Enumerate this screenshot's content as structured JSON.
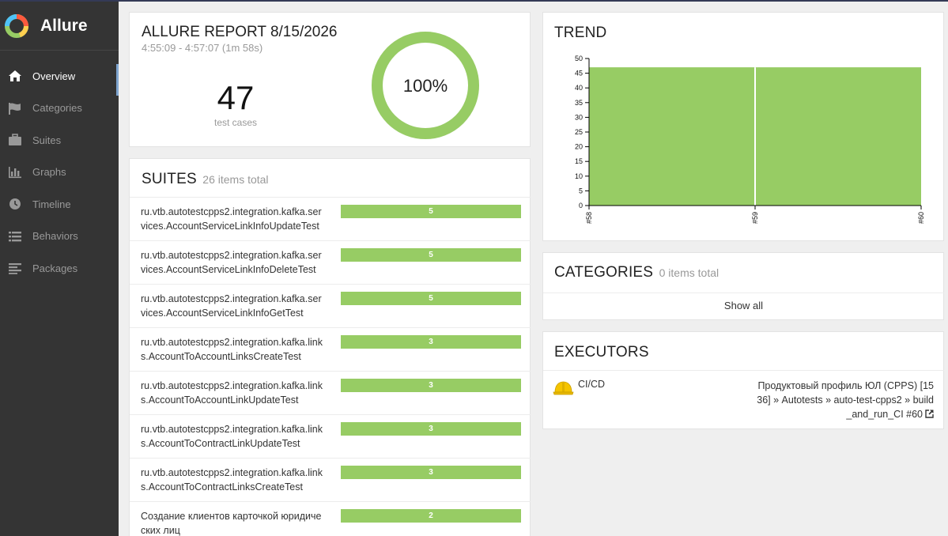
{
  "app": {
    "brand": "Allure"
  },
  "sidebar": {
    "items": [
      {
        "label": "Overview",
        "icon": "home-icon",
        "active": true
      },
      {
        "label": "Categories",
        "icon": "flag-icon",
        "active": false
      },
      {
        "label": "Suites",
        "icon": "briefcase-icon",
        "active": false
      },
      {
        "label": "Graphs",
        "icon": "bar-chart-icon",
        "active": false
      },
      {
        "label": "Timeline",
        "icon": "clock-icon",
        "active": false
      },
      {
        "label": "Behaviors",
        "icon": "list-icon",
        "active": false
      },
      {
        "label": "Packages",
        "icon": "align-left-icon",
        "active": false
      }
    ]
  },
  "summary": {
    "title": "ALLURE REPORT 8/15/2026",
    "time": "4:55:09 - 4:57:07 (1m 58s)",
    "count": "47",
    "count_label": "test cases",
    "percent": "100%",
    "pass_ratio": 1.0
  },
  "suites": {
    "title": "SUITES",
    "subtitle": "26 items total",
    "max_value": 5,
    "rows": [
      {
        "name": "ru.vtb.autotestcpps2.integration.kafka.services.AccountServiceLinkInfoUpdateTest",
        "count": "5",
        "value": 5
      },
      {
        "name": "ru.vtb.autotestcpps2.integration.kafka.services.AccountServiceLinkInfoDeleteTest",
        "count": "5",
        "value": 5
      },
      {
        "name": "ru.vtb.autotestcpps2.integration.kafka.services.AccountServiceLinkInfoGetTest",
        "count": "5",
        "value": 5
      },
      {
        "name": "ru.vtb.autotestcpps2.integration.kafka.links.AccountToAccountLinksCreateTest",
        "count": "3",
        "value": 3
      },
      {
        "name": "ru.vtb.autotestcpps2.integration.kafka.links.AccountToAccountLinkUpdateTest",
        "count": "3",
        "value": 3
      },
      {
        "name": "ru.vtb.autotestcpps2.integration.kafka.links.AccountToContractLinkUpdateTest",
        "count": "3",
        "value": 3
      },
      {
        "name": "ru.vtb.autotestcpps2.integration.kafka.links.AccountToContractLinksCreateTest",
        "count": "3",
        "value": 3
      },
      {
        "name": "Создание клиентов карточкой юридических лиц",
        "count": "2",
        "value": 2
      }
    ]
  },
  "trend": {
    "title": "TREND"
  },
  "chart_data": {
    "type": "area",
    "x": [
      "#58",
      "#59",
      "#60"
    ],
    "series": [
      {
        "values": [
          47,
          47,
          47
        ],
        "color": "#97cc64"
      }
    ],
    "yticks": [
      "0",
      "5",
      "10",
      "15",
      "20",
      "25",
      "30",
      "35",
      "40",
      "45",
      "50"
    ],
    "ylim": [
      0,
      50
    ]
  },
  "categories": {
    "title": "CATEGORIES",
    "subtitle": "0 items total",
    "show_all": "Show all"
  },
  "executors": {
    "title": "EXECUTORS",
    "name": "CI/CD",
    "icon": "hard-hat-icon",
    "detail": "Продуктовый профиль ЮЛ (CPPS) [1536] » Autotests » auto-test-cpps2 » build_and_run_CI #60",
    "link_icon": "external-link-icon"
  },
  "colors": {
    "passed": "#97cc64",
    "sidebar": "#343434",
    "active_marker": "#7fa5d0"
  }
}
